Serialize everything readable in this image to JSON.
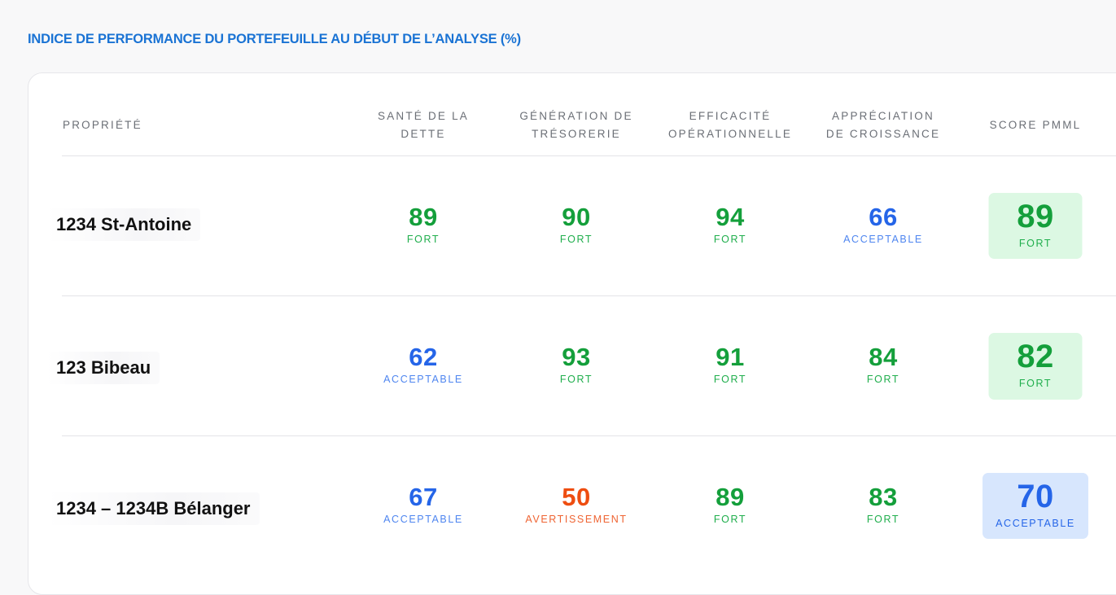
{
  "title": "INDICE DE PERFORMANCE DU PORTEFEUILLE AU DÉBUT DE L’ANALYSE (%)",
  "colors": {
    "fort": "#149f3b",
    "acceptable": "#2565e8",
    "acceptable_label": "#4f86f0",
    "avertissement": "#ee4d10",
    "fort_bg": "#dcf8e3",
    "acceptable_bg": "#d7e6fd",
    "title": "#1a73d4"
  },
  "table": {
    "columns": {
      "property": "PROPRIÉTÉ",
      "dette": [
        "SANTÉ DE LA",
        "DETTE"
      ],
      "tresorerie": [
        "GÉNÉRATION DE",
        "TRÉSORERIE"
      ],
      "efficacite": [
        "EFFICACITÉ",
        "OPÉRATIONNELLE"
      ],
      "croissance": [
        "APPRÉCIATION",
        "DE CROISSANCE"
      ],
      "score": "SCORE PMML"
    },
    "rows": [
      {
        "name": "1234 St-Antoine",
        "dette": {
          "value": "89",
          "label": "FORT"
        },
        "tresorerie": {
          "value": "90",
          "label": "FORT"
        },
        "efficacite": {
          "value": "94",
          "label": "FORT"
        },
        "croissance": {
          "value": "66",
          "label": "ACCEPTABLE"
        },
        "score": {
          "value": "89",
          "label": "FORT"
        }
      },
      {
        "name": "123 Bibeau",
        "dette": {
          "value": "62",
          "label": "ACCEPTABLE"
        },
        "tresorerie": {
          "value": "93",
          "label": "FORT"
        },
        "efficacite": {
          "value": "91",
          "label": "FORT"
        },
        "croissance": {
          "value": "84",
          "label": "FORT"
        },
        "score": {
          "value": "82",
          "label": "FORT"
        }
      },
      {
        "name": "1234 – 1234B Bélanger",
        "dette": {
          "value": "67",
          "label": "ACCEPTABLE"
        },
        "tresorerie": {
          "value": "50",
          "label": "AVERTISSEMENT"
        },
        "efficacite": {
          "value": "89",
          "label": "FORT"
        },
        "croissance": {
          "value": "83",
          "label": "FORT"
        },
        "score": {
          "value": "70",
          "label": "ACCEPTABLE"
        }
      }
    ]
  }
}
